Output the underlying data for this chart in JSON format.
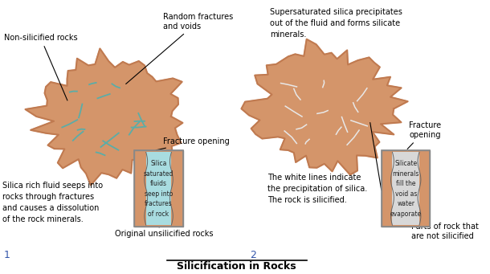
{
  "bg_color": "#ffffff",
  "rock_color": "#d4956a",
  "rock_edge_color": "#c07a50",
  "crack_color_left": "#5aada8",
  "crack_color_right": "#e8e8e8",
  "box_bg_left": "#a8dce0",
  "box_bg_right": "#d8d8d8",
  "box_rock_color": "#d4956a",
  "box_edge_color": "#888888",
  "title": "Silicification in Rocks",
  "label_left_top1": "Non-silicified rocks",
  "label_left_top2": "Random fractures\nand voids",
  "label_left_bottom1": "Silica rich fluid seeps into\nrocks through fractures\nand causes a dissolution\nof the rock minerals.",
  "label_left_box": "Fracture opening",
  "label_left_box_inner": "Silica\nsaturated\nfluids\nseep into\nfractures\nof rock",
  "label_left_box_bottom": "Original unsilicified rocks",
  "label_left_num": "1",
  "label_right_top": "Supersaturated silica precipitates\nout of the fluid and forms silicate\nminerals.",
  "label_right_mid1": "The white lines indicate\nthe precipitation of silica.\nThe rock is silicified.",
  "label_right_box": "Fracture\nopening",
  "label_right_box_inner": "Silicate\nminerals\nfill the\nvoid as\nwater\nevaporate",
  "label_right_box_bottom": "Parts of rock that\nare not silicified",
  "label_right_num": "2"
}
